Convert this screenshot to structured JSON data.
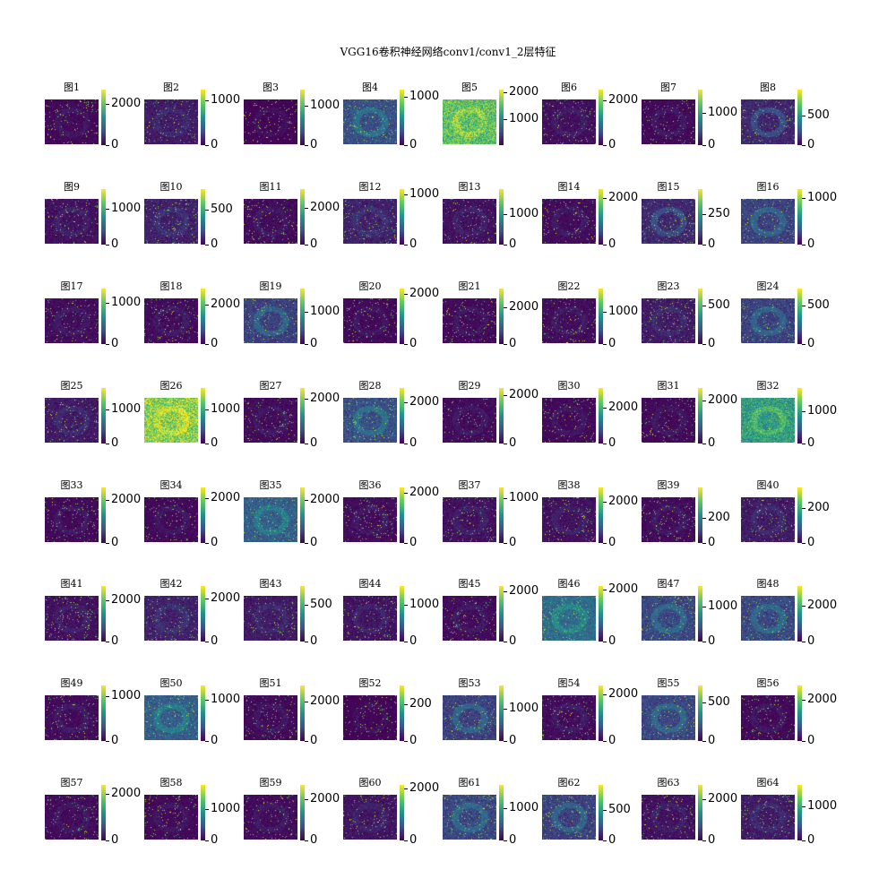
{
  "title": "VGG16卷积神经网络conv1/conv1_2层特征",
  "colormap": [
    "#440154",
    "#3b528b",
    "#21918c",
    "#5ec962",
    "#fde725"
  ],
  "chart_data": {
    "type": "heatmap",
    "title": "VGG16卷积神经网络conv1/conv1_2层特征",
    "grid": false,
    "layout": "8x8 grid of feature maps, each with its own colorbar",
    "panels": [
      {
        "label": "图1",
        "cbar_ticks": [
          0,
          2000
        ],
        "vmax": 2700,
        "base": 0.02
      },
      {
        "label": "图2",
        "cbar_ticks": [
          0,
          1000
        ],
        "vmax": 1250,
        "base": 0.08
      },
      {
        "label": "图3",
        "cbar_ticks": [
          0,
          1000
        ],
        "vmax": 1400,
        "base": 0.0
      },
      {
        "label": "图4",
        "cbar_ticks": [
          0,
          1000
        ],
        "vmax": 1150,
        "base": 0.25
      },
      {
        "label": "图5",
        "cbar_ticks": [
          1000,
          2000
        ],
        "vmax": 2100,
        "base": 0.72
      },
      {
        "label": "图6",
        "cbar_ticks": [
          0,
          2000
        ],
        "vmax": 2500,
        "base": 0.04
      },
      {
        "label": "图7",
        "cbar_ticks": [
          0,
          1000
        ],
        "vmax": 1700,
        "base": 0.02
      },
      {
        "label": "图8",
        "cbar_ticks": [
          0,
          500
        ],
        "vmax": 950,
        "base": 0.12
      },
      {
        "label": "图9",
        "cbar_ticks": [
          0,
          1000
        ],
        "vmax": 1550,
        "base": 0.05
      },
      {
        "label": "图10",
        "cbar_ticks": [
          0,
          500
        ],
        "vmax": 800,
        "base": 0.1
      },
      {
        "label": "图11",
        "cbar_ticks": [
          0,
          2000
        ],
        "vmax": 3000,
        "base": 0.03
      },
      {
        "label": "图12",
        "cbar_ticks": [
          0,
          1000
        ],
        "vmax": 1100,
        "base": 0.1
      },
      {
        "label": "图13",
        "cbar_ticks": [
          0,
          1000
        ],
        "vmax": 1800,
        "base": 0.05
      },
      {
        "label": "图14",
        "cbar_ticks": [
          0,
          2000
        ],
        "vmax": 2400,
        "base": 0.03
      },
      {
        "label": "图15",
        "cbar_ticks": [
          0,
          250
        ],
        "vmax": 450,
        "base": 0.12
      },
      {
        "label": "图16",
        "cbar_ticks": [
          0,
          1000
        ],
        "vmax": 1200,
        "base": 0.2
      },
      {
        "label": "图17",
        "cbar_ticks": [
          0,
          1000
        ],
        "vmax": 1350,
        "base": 0.03
      },
      {
        "label": "图18",
        "cbar_ticks": [
          0,
          2000
        ],
        "vmax": 2800,
        "base": 0.03
      },
      {
        "label": "图19",
        "cbar_ticks": [
          0,
          1000
        ],
        "vmax": 1700,
        "base": 0.2
      },
      {
        "label": "图20",
        "cbar_ticks": [
          0,
          2000
        ],
        "vmax": 2200,
        "base": 0.02
      },
      {
        "label": "图21",
        "cbar_ticks": [
          0,
          2000
        ],
        "vmax": 3000,
        "base": 0.02
      },
      {
        "label": "图22",
        "cbar_ticks": [
          0,
          1000
        ],
        "vmax": 1700,
        "base": 0.03
      },
      {
        "label": "图23",
        "cbar_ticks": [
          0,
          500
        ],
        "vmax": 720,
        "base": 0.08
      },
      {
        "label": "图24",
        "cbar_ticks": [
          0,
          500
        ],
        "vmax": 720,
        "base": 0.2
      },
      {
        "label": "图25",
        "cbar_ticks": [
          0,
          1000
        ],
        "vmax": 1650,
        "base": 0.08
      },
      {
        "label": "图26",
        "cbar_ticks": [
          0,
          1000
        ],
        "vmax": 1650,
        "base": 0.82
      },
      {
        "label": "图27",
        "cbar_ticks": [
          0,
          2000
        ],
        "vmax": 2500,
        "base": 0.03
      },
      {
        "label": "图28",
        "cbar_ticks": [
          0,
          2000
        ],
        "vmax": 2700,
        "base": 0.25
      },
      {
        "label": "图29",
        "cbar_ticks": [
          0,
          2000
        ],
        "vmax": 2300,
        "base": 0.03
      },
      {
        "label": "图30",
        "cbar_ticks": [
          0,
          2000
        ],
        "vmax": 3100,
        "base": 0.02
      },
      {
        "label": "图31",
        "cbar_ticks": [
          0,
          2000
        ],
        "vmax": 2600,
        "base": 0.02
      },
      {
        "label": "图32",
        "cbar_ticks": [
          0,
          1000
        ],
        "vmax": 1700,
        "base": 0.55
      },
      {
        "label": "图33",
        "cbar_ticks": [
          0,
          2000
        ],
        "vmax": 2600,
        "base": 0.02
      },
      {
        "label": "图34",
        "cbar_ticks": [
          0,
          2000
        ],
        "vmax": 2500,
        "base": 0.02
      },
      {
        "label": "图35",
        "cbar_ticks": [
          0,
          2000
        ],
        "vmax": 2600,
        "base": 0.3
      },
      {
        "label": "图36",
        "cbar_ticks": [
          0,
          2000
        ],
        "vmax": 2200,
        "base": 0.03
      },
      {
        "label": "图37",
        "cbar_ticks": [
          0,
          1000
        ],
        "vmax": 1250,
        "base": 0.05
      },
      {
        "label": "图38",
        "cbar_ticks": [
          0,
          2000
        ],
        "vmax": 2700,
        "base": 0.05
      },
      {
        "label": "图39",
        "cbar_ticks": [
          0,
          200
        ],
        "vmax": 440,
        "base": 0.03
      },
      {
        "label": "图40",
        "cbar_ticks": [
          0,
          200
        ],
        "vmax": 320,
        "base": 0.08
      },
      {
        "label": "图41",
        "cbar_ticks": [
          0,
          2000
        ],
        "vmax": 2700,
        "base": 0.05
      },
      {
        "label": "图42",
        "cbar_ticks": [
          0,
          2000
        ],
        "vmax": 2600,
        "base": 0.1
      },
      {
        "label": "图43",
        "cbar_ticks": [
          0,
          500
        ],
        "vmax": 750,
        "base": 0.08
      },
      {
        "label": "图44",
        "cbar_ticks": [
          0,
          1000
        ],
        "vmax": 1500,
        "base": 0.06
      },
      {
        "label": "图45",
        "cbar_ticks": [
          0,
          2000
        ],
        "vmax": 2200,
        "base": 0.03
      },
      {
        "label": "图46",
        "cbar_ticks": [
          0,
          2000
        ],
        "vmax": 2150,
        "base": 0.35
      },
      {
        "label": "图47",
        "cbar_ticks": [
          0,
          1000
        ],
        "vmax": 1600,
        "base": 0.22
      },
      {
        "label": "图48",
        "cbar_ticks": [
          0,
          2000
        ],
        "vmax": 3100,
        "base": 0.22
      },
      {
        "label": "图49",
        "cbar_ticks": [
          0,
          1000
        ],
        "vmax": 1250,
        "base": 0.03
      },
      {
        "label": "图50",
        "cbar_ticks": [
          0,
          1000
        ],
        "vmax": 1350,
        "base": 0.3
      },
      {
        "label": "图51",
        "cbar_ticks": [
          0,
          2000
        ],
        "vmax": 2800,
        "base": 0.02
      },
      {
        "label": "图52",
        "cbar_ticks": [
          0,
          200
        ],
        "vmax": 300,
        "base": 0.0
      },
      {
        "label": "图53",
        "cbar_ticks": [
          0,
          1000
        ],
        "vmax": 1700,
        "base": 0.2
      },
      {
        "label": "图54",
        "cbar_ticks": [
          0,
          2000
        ],
        "vmax": 2400,
        "base": 0.03
      },
      {
        "label": "图55",
        "cbar_ticks": [
          0,
          500
        ],
        "vmax": 720,
        "base": 0.22
      },
      {
        "label": "图56",
        "cbar_ticks": [
          0,
          2000
        ],
        "vmax": 2700,
        "base": 0.02
      },
      {
        "label": "图57",
        "cbar_ticks": [
          0,
          2000
        ],
        "vmax": 2400,
        "base": 0.03
      },
      {
        "label": "图58",
        "cbar_ticks": [
          0,
          1000
        ],
        "vmax": 1750,
        "base": 0.02
      },
      {
        "label": "图59",
        "cbar_ticks": [
          0,
          2000
        ],
        "vmax": 2700,
        "base": 0.03
      },
      {
        "label": "图60",
        "cbar_ticks": [
          0,
          2000
        ],
        "vmax": 2150,
        "base": 0.06
      },
      {
        "label": "图61",
        "cbar_ticks": [
          0,
          1000
        ],
        "vmax": 1700,
        "base": 0.22
      },
      {
        "label": "图62",
        "cbar_ticks": [
          0,
          500
        ],
        "vmax": 900,
        "base": 0.2
      },
      {
        "label": "图63",
        "cbar_ticks": [
          0,
          2000
        ],
        "vmax": 2700,
        "base": 0.05
      },
      {
        "label": "图64",
        "cbar_ticks": [
          0,
          1000
        ],
        "vmax": 1650,
        "base": 0.08
      }
    ]
  }
}
